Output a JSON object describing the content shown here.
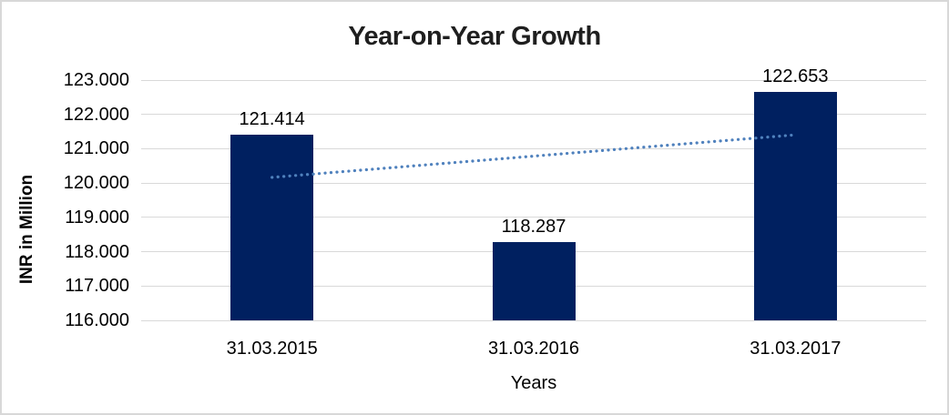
{
  "chart_data": {
    "type": "bar",
    "title": "Year-on-Year Growth",
    "xlabel": "Years",
    "ylabel": "INR in Million",
    "categories": [
      "31.03.2015",
      "31.03.2016",
      "31.03.2017"
    ],
    "values": [
      121.414,
      118.287,
      122.653
    ],
    "value_labels": [
      "121.414",
      "118.287",
      "122.653"
    ],
    "ylim": [
      116,
      123
    ],
    "yticks": [
      {
        "value": 116,
        "label": "116.000"
      },
      {
        "value": 117,
        "label": "117.000"
      },
      {
        "value": 118,
        "label": "118.000"
      },
      {
        "value": 119,
        "label": "119.000"
      },
      {
        "value": 120,
        "label": "120.000"
      },
      {
        "value": 121,
        "label": "121.000"
      },
      {
        "value": 122,
        "label": "122.000"
      },
      {
        "value": 123,
        "label": "123.000"
      }
    ],
    "grid": true,
    "legend": false,
    "trendline": {
      "type": "linear",
      "style": "dotted"
    },
    "colors": {
      "bar": "#002060",
      "trendline": "#4f81bd",
      "gridline": "#d9d9d9",
      "title_text": "#1f1f1f",
      "axis_text": "#000000",
      "frame_border": "#d8d8d8",
      "background": "#ffffff"
    }
  }
}
